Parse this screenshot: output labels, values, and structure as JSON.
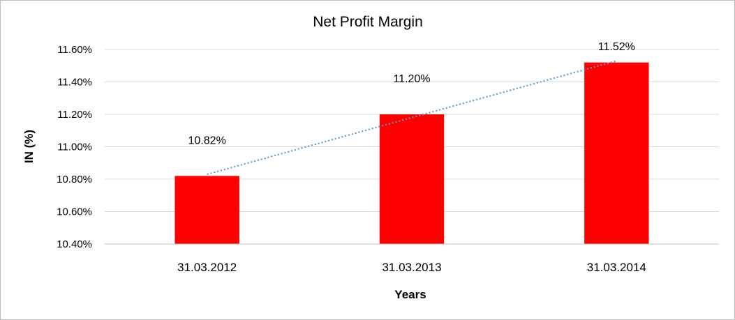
{
  "chart_data": {
    "type": "bar",
    "title": "Net Profit Margin",
    "xlabel": "Years",
    "ylabel": "IN (%)",
    "categories": [
      "31.03.2012",
      "31.03.2013",
      "31.03.2014"
    ],
    "values": [
      10.82,
      11.2,
      11.52
    ],
    "data_labels": [
      "10.82%",
      "11.20%",
      "11.52%"
    ],
    "yticks": [
      "10.40%",
      "10.60%",
      "10.80%",
      "11.00%",
      "11.20%",
      "11.40%",
      "11.60%"
    ],
    "ylim": [
      10.4,
      11.6
    ],
    "grid": true,
    "trendline": "linear (dotted)",
    "colors": {
      "bar": "#ff0000",
      "trendline": "#5b9bd5",
      "grid": "#d9d9d9",
      "axis": "#bfbfbf"
    }
  }
}
